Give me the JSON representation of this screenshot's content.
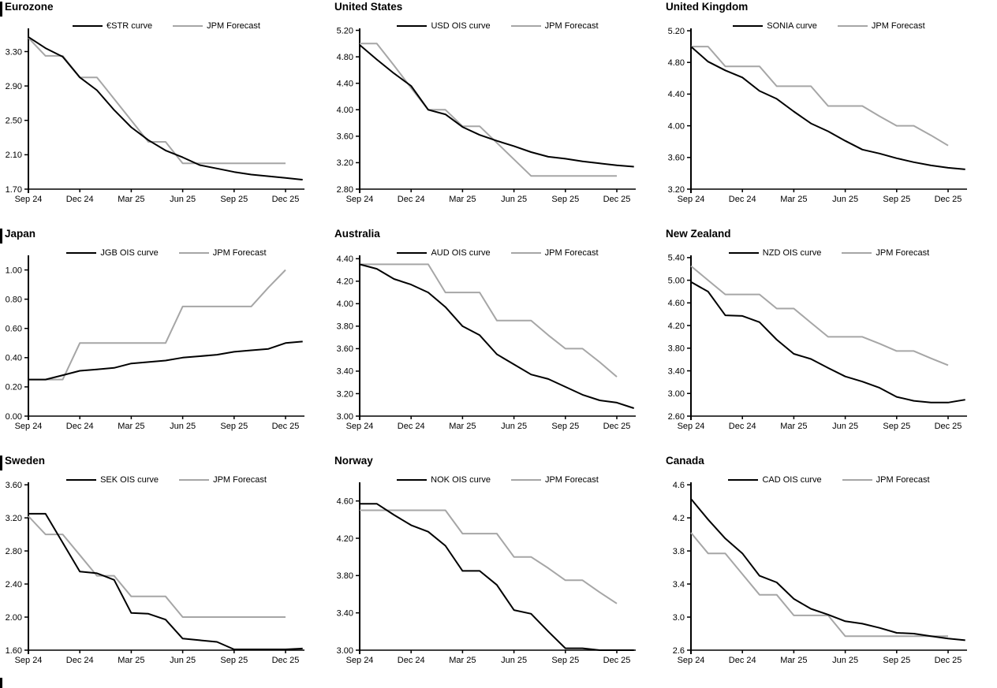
{
  "page": {
    "background": "#ffffff",
    "section_marker_color": "#000000"
  },
  "colors": {
    "ois_line": "#000000",
    "forecast_line": "#a6a6a6"
  },
  "chart_data": [
    {
      "type": "line",
      "title": "Eurozone",
      "x_tick_labels": [
        "Sep 24",
        "Dec 24",
        "Mar 25",
        "Jun 25",
        "Sep 25",
        "Dec 25"
      ],
      "x_unit": "monthly from Sep 2024",
      "yticks": [
        "1.70",
        "2.10",
        "2.50",
        "2.90",
        "3.30"
      ],
      "ylim": [
        1.7,
        3.57
      ],
      "grid": false,
      "legend_position": "top",
      "series": [
        {
          "name": "€STR curve",
          "color": "#000000",
          "values": [
            3.47,
            3.34,
            3.24,
            3.0,
            2.85,
            2.62,
            2.42,
            2.27,
            2.15,
            2.07,
            1.98,
            1.94,
            1.9,
            1.87,
            1.85,
            1.83,
            1.81
          ]
        },
        {
          "name": "JPM Forecast",
          "color": "#a6a6a6",
          "values": [
            3.46,
            3.25,
            3.25,
            3.0,
            3.0,
            2.75,
            2.5,
            2.25,
            2.25,
            2.0,
            2.0,
            2.0,
            2.0,
            2.0,
            2.0,
            2.0
          ]
        }
      ]
    },
    {
      "type": "line",
      "title": "United States",
      "x_tick_labels": [
        "Sep 24",
        "Dec 24",
        "Mar 25",
        "Jun 25",
        "Sep 25",
        "Dec 25"
      ],
      "x_unit": "monthly from Sep 2024",
      "yticks": [
        "2.80",
        "3.20",
        "3.60",
        "4.00",
        "4.40",
        "4.80",
        "5.20"
      ],
      "ylim": [
        2.8,
        5.23
      ],
      "grid": false,
      "legend_position": "top",
      "series": [
        {
          "name": "USD OIS curve",
          "color": "#000000",
          "values": [
            4.98,
            4.76,
            4.55,
            4.36,
            4.0,
            3.93,
            3.74,
            3.62,
            3.53,
            3.45,
            3.36,
            3.29,
            3.26,
            3.22,
            3.19,
            3.16,
            3.14
          ]
        },
        {
          "name": "JPM Forecast",
          "color": "#a6a6a6",
          "values": [
            5.0,
            5.0,
            4.67,
            4.33,
            4.0,
            4.0,
            3.75,
            3.75,
            3.5,
            3.25,
            3.0,
            3.0,
            3.0,
            3.0,
            3.0,
            3.0
          ]
        }
      ]
    },
    {
      "type": "line",
      "title": "United Kingdom",
      "x_tick_labels": [
        "Sep 24",
        "Dec 24",
        "Mar 25",
        "Jun 25",
        "Sep 25",
        "Dec 25"
      ],
      "x_unit": "monthly from Sep 2024",
      "yticks": [
        "3.20",
        "3.60",
        "4.00",
        "4.40",
        "4.80",
        "5.20"
      ],
      "ylim": [
        3.2,
        5.23
      ],
      "grid": false,
      "legend_position": "top",
      "series": [
        {
          "name": "SONIA curve",
          "color": "#000000",
          "values": [
            5.0,
            4.81,
            4.7,
            4.61,
            4.44,
            4.34,
            4.18,
            4.03,
            3.93,
            3.81,
            3.7,
            3.65,
            3.59,
            3.54,
            3.5,
            3.47,
            3.45
          ]
        },
        {
          "name": "JPM Forecast",
          "color": "#a6a6a6",
          "values": [
            5.0,
            5.0,
            4.75,
            4.75,
            4.75,
            4.5,
            4.5,
            4.5,
            4.25,
            4.25,
            4.25,
            4.12,
            4.0,
            4.0,
            3.88,
            3.75
          ]
        }
      ]
    },
    {
      "type": "line",
      "title": "Japan",
      "x_tick_labels": [
        "Sep 24",
        "Dec 24",
        "Mar 25",
        "Jun 25",
        "Sep 25",
        "Dec 25"
      ],
      "x_unit": "monthly from Sep 2024",
      "yticks": [
        "0.00",
        "0.20",
        "0.40",
        "0.60",
        "0.80",
        "1.00"
      ],
      "ylim": [
        0.0,
        1.1
      ],
      "grid": false,
      "legend_position": "top",
      "series": [
        {
          "name": "JGB OIS curve",
          "color": "#000000",
          "values": [
            0.25,
            0.25,
            0.28,
            0.31,
            0.32,
            0.33,
            0.36,
            0.37,
            0.38,
            0.4,
            0.41,
            0.42,
            0.44,
            0.45,
            0.46,
            0.5,
            0.51
          ]
        },
        {
          "name": "JPM Forecast",
          "color": "#a6a6a6",
          "values": [
            0.25,
            0.25,
            0.25,
            0.5,
            0.5,
            0.5,
            0.5,
            0.5,
            0.5,
            0.75,
            0.75,
            0.75,
            0.75,
            0.75,
            0.88,
            1.0
          ]
        }
      ]
    },
    {
      "type": "line",
      "title": "Australia",
      "x_tick_labels": [
        "Sep 24",
        "Dec 24",
        "Mar 25",
        "Jun 25",
        "Sep 25",
        "Dec 25"
      ],
      "x_unit": "monthly from Sep 2024",
      "yticks": [
        "3.00",
        "3.20",
        "3.40",
        "3.60",
        "3.80",
        "4.00",
        "4.20",
        "4.40"
      ],
      "ylim": [
        3.0,
        4.43
      ],
      "grid": false,
      "legend_position": "top",
      "series": [
        {
          "name": "AUD OIS curve",
          "color": "#000000",
          "values": [
            4.35,
            4.31,
            4.22,
            4.17,
            4.1,
            3.97,
            3.8,
            3.72,
            3.55,
            3.46,
            3.37,
            3.33,
            3.26,
            3.19,
            3.14,
            3.12,
            3.07
          ]
        },
        {
          "name": "JPM Forecast",
          "color": "#a6a6a6",
          "values": [
            4.35,
            4.35,
            4.35,
            4.35,
            4.35,
            4.1,
            4.1,
            4.1,
            3.85,
            3.85,
            3.85,
            3.72,
            3.6,
            3.6,
            3.48,
            3.35
          ]
        }
      ]
    },
    {
      "type": "line",
      "title": "New Zealand",
      "x_tick_labels": [
        "Sep 24",
        "Dec 24",
        "Mar 25",
        "Jun 25",
        "Sep 25",
        "Dec 25"
      ],
      "x_unit": "monthly from Sep 2024",
      "yticks": [
        "2.60",
        "3.00",
        "3.40",
        "3.80",
        "4.20",
        "4.60",
        "5.00",
        "5.40"
      ],
      "ylim": [
        2.6,
        5.44
      ],
      "grid": false,
      "legend_position": "top",
      "series": [
        {
          "name": "NZD OIS curve",
          "color": "#000000",
          "values": [
            4.97,
            4.8,
            4.38,
            4.37,
            4.26,
            3.95,
            3.7,
            3.61,
            3.45,
            3.3,
            3.21,
            3.1,
            2.94,
            2.87,
            2.84,
            2.84,
            2.89
          ]
        },
        {
          "name": "JPM Forecast",
          "color": "#a6a6a6",
          "values": [
            5.25,
            5.0,
            4.75,
            4.75,
            4.75,
            4.5,
            4.5,
            4.25,
            4.0,
            4.0,
            4.0,
            3.88,
            3.75,
            3.75,
            3.62,
            3.5
          ]
        }
      ]
    },
    {
      "type": "line",
      "title": "Sweden",
      "x_tick_labels": [
        "Sep 24",
        "Dec 24",
        "Mar 25",
        "Jun 25",
        "Sep 25",
        "Dec 25"
      ],
      "x_unit": "monthly from Sep 2024",
      "yticks": [
        "1.60",
        "2.00",
        "2.40",
        "2.80",
        "3.20",
        "3.60"
      ],
      "ylim": [
        1.6,
        3.63
      ],
      "grid": false,
      "legend_position": "top",
      "series": [
        {
          "name": "SEK OIS curve",
          "color": "#000000",
          "values": [
            3.25,
            3.25,
            2.9,
            2.55,
            2.53,
            2.45,
            2.05,
            2.04,
            1.97,
            1.74,
            1.72,
            1.7,
            1.61,
            1.61,
            1.61,
            1.61,
            1.62
          ]
        },
        {
          "name": "JPM Forecast",
          "color": "#a6a6a6",
          "values": [
            3.22,
            3.0,
            3.0,
            2.75,
            2.5,
            2.5,
            2.25,
            2.25,
            2.25,
            2.0,
            2.0,
            2.0,
            2.0,
            2.0,
            2.0,
            2.0
          ]
        }
      ]
    },
    {
      "type": "line",
      "title": "Norway",
      "x_tick_labels": [
        "Sep 24",
        "Dec 24",
        "Mar 25",
        "Jun 25",
        "Sep 25",
        "Dec 25"
      ],
      "x_unit": "monthly from Sep 2024",
      "yticks": [
        "3.00",
        "3.40",
        "3.80",
        "4.20",
        "4.60"
      ],
      "ylim": [
        3.0,
        4.8
      ],
      "grid": false,
      "legend_position": "top",
      "series": [
        {
          "name": "NOK OIS curve",
          "color": "#000000",
          "values": [
            4.57,
            4.57,
            4.45,
            4.34,
            4.27,
            4.12,
            3.85,
            3.85,
            3.7,
            3.43,
            3.39,
            3.2,
            3.02,
            3.02,
            2.99,
            2.98,
            2.98
          ]
        },
        {
          "name": "JPM Forecast",
          "color": "#a6a6a6",
          "values": [
            4.5,
            4.5,
            4.5,
            4.5,
            4.5,
            4.5,
            4.25,
            4.25,
            4.25,
            4.0,
            4.0,
            3.88,
            3.75,
            3.75,
            3.62,
            3.5
          ]
        }
      ]
    },
    {
      "type": "line",
      "title": "Canada",
      "x_tick_labels": [
        "Sep 24",
        "Dec 24",
        "Mar 25",
        "Jun 25",
        "Sep 25",
        "Dec 25"
      ],
      "x_unit": "monthly from Sep 2024",
      "yticks": [
        "2.6",
        "3.0",
        "3.4",
        "3.8",
        "4.2",
        "4.6"
      ],
      "ylim": [
        2.6,
        4.63
      ],
      "grid": false,
      "legend_position": "top",
      "series": [
        {
          "name": "CAD OIS curve",
          "color": "#000000",
          "values": [
            4.43,
            4.18,
            3.95,
            3.77,
            3.5,
            3.42,
            3.22,
            3.1,
            3.03,
            2.95,
            2.92,
            2.87,
            2.81,
            2.8,
            2.77,
            2.74,
            2.72
          ]
        },
        {
          "name": "JPM Forecast",
          "color": "#a6a6a6",
          "values": [
            4.02,
            3.77,
            3.77,
            3.52,
            3.27,
            3.27,
            3.02,
            3.02,
            3.02,
            2.77,
            2.77,
            2.77,
            2.77,
            2.77,
            2.77,
            2.77
          ]
        }
      ]
    }
  ]
}
